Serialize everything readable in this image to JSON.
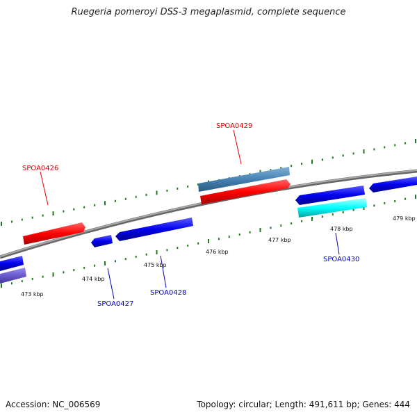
{
  "title": "Ruegeria pomeroyi DSS-3 megaplasmid, complete sequence",
  "footer": {
    "accession": "Accession: NC_006569",
    "summary": "Topology: circular; Length: 491,611 bp; Genes: 444"
  },
  "colors": {
    "backbone": "#8c8c8c",
    "tick": "#1f7a1f",
    "forward_gene": "#ff0000",
    "reverse_gene": "#0000ee",
    "forward_label": "#dd0000",
    "reverse_label": "#0000bb",
    "steelblue_gene": "#4682b4",
    "cyan_gene": "#00ffff",
    "slate_gene": "#6a5acd"
  },
  "ruler_labels": [
    "473 kbp",
    "474 kbp",
    "475 kbp",
    "476 kbp",
    "477 kbp",
    "478 kbp",
    "479 kbp"
  ],
  "gene_labels": [
    {
      "text": "SPOA0426",
      "strand": "forward"
    },
    {
      "text": "SPOA0429",
      "strand": "forward"
    },
    {
      "text": "SPOA0427",
      "strand": "reverse"
    },
    {
      "text": "SPOA0428",
      "strand": "reverse"
    },
    {
      "text": "SPOA0430",
      "strand": "reverse"
    }
  ]
}
